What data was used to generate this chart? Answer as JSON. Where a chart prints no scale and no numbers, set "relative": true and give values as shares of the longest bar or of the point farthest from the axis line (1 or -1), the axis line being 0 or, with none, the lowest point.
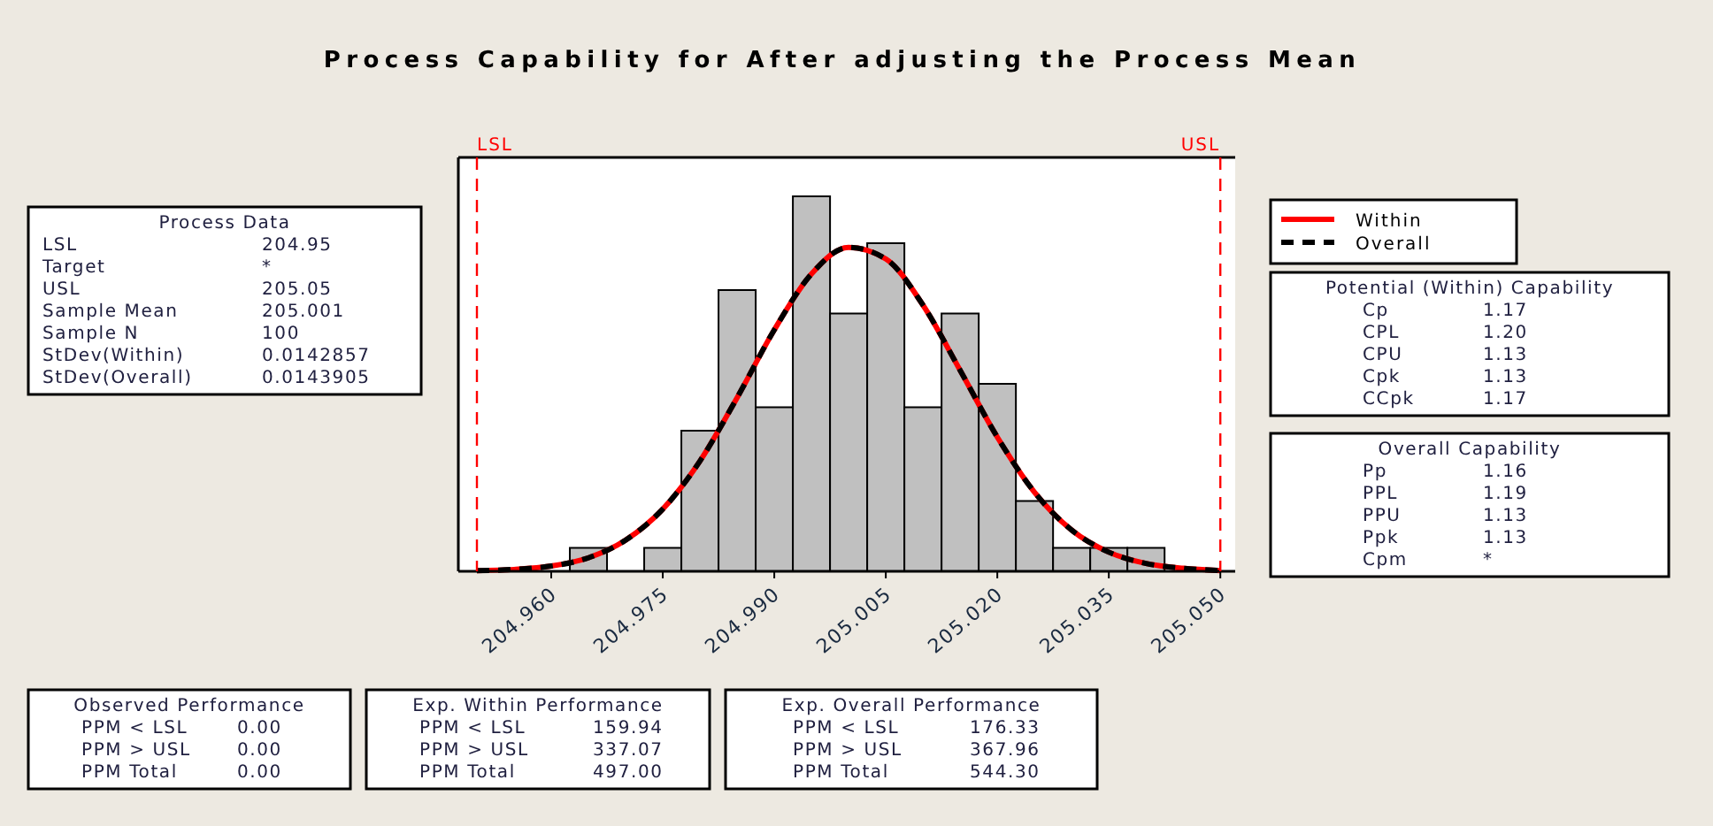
{
  "chart_data": {
    "type": "histogram",
    "title": "Process Capability for After adjusting the Process Mean",
    "relative": true,
    "color": "#c0c0c0",
    "bins": [
      204.9625,
      204.9675,
      204.9725,
      204.9775,
      204.9825,
      204.9875,
      204.9925,
      204.9975,
      205.0025,
      205.0075,
      205.0125,
      205.0175,
      205.0225,
      205.0275,
      205.0325,
      205.0375,
      205.0425
    ],
    "values": [
      0.0625,
      0,
      0.0625,
      0.375,
      0.75,
      0.4375,
      1,
      0.6875,
      0.875,
      0.4375,
      0.6875,
      0.5,
      0.1875,
      0.0625,
      0.0625,
      0.0625
    ],
    "xlim": [
      204.9475,
      205.052
    ],
    "xticks": [
      {
        "value": 204.96,
        "label": "204.960"
      },
      {
        "value": 204.975,
        "label": "204.975"
      },
      {
        "value": 204.99,
        "label": "204.990"
      },
      {
        "value": 205.005,
        "label": "205.005"
      },
      {
        "value": 205.02,
        "label": "205.020"
      },
      {
        "value": 205.035,
        "label": "205.035"
      },
      {
        "value": 205.05,
        "label": "205.050"
      }
    ],
    "series": [
      {
        "name": "Within",
        "type": "line",
        "color": "#ff0000",
        "line_style": "solid",
        "x": [
          204.95,
          204.955,
          204.96,
          204.965,
          204.97,
          204.975,
          204.98,
          204.985,
          204.99,
          204.995,
          205.0,
          205.005,
          205.01,
          205.015,
          205.02,
          205.025,
          205.03,
          205.035,
          205.04,
          205.045,
          205.05
        ],
        "values": [
          0.002,
          0.005,
          0.014,
          0.036,
          0.083,
          0.166,
          0.294,
          0.463,
          0.644,
          0.793,
          0.864,
          0.833,
          0.71,
          0.536,
          0.358,
          0.211,
          0.11,
          0.051,
          0.021,
          0.008,
          0.002
        ]
      },
      {
        "name": "Overall",
        "type": "line",
        "color": "#000000",
        "line_style": "dashed",
        "x": [
          204.95,
          204.955,
          204.96,
          204.965,
          204.97,
          204.975,
          204.98,
          204.985,
          204.99,
          204.995,
          205.0,
          205.005,
          205.01,
          205.015,
          205.02,
          205.025,
          205.03,
          205.035,
          205.04,
          205.045,
          205.05
        ],
        "values": [
          0.002,
          0.005,
          0.014,
          0.036,
          0.083,
          0.166,
          0.294,
          0.463,
          0.644,
          0.793,
          0.864,
          0.833,
          0.71,
          0.536,
          0.358,
          0.211,
          0.11,
          0.051,
          0.021,
          0.008,
          0.002
        ]
      }
    ],
    "ref_lines": [
      {
        "axis": "x",
        "value": 204.95,
        "label": "LSL",
        "color": "#ff0000",
        "line_style": "dashed"
      },
      {
        "axis": "x",
        "value": 205.05,
        "label": "USL",
        "color": "#ff0000",
        "line_style": "dashed"
      }
    ],
    "legend": "right",
    "annotations": [
      "Process Data\nLSL\t204.95\nTarget\t*\nUSL\t205.05\nSample Mean\t205.001\nSample N\t100\nStDev(Within)\t0.0142857\nStDev(Overall)\t0.0143905",
      "Potential (Within) Capability\nCp\t1.17\nCPL\t1.20\nCPU\t1.13\nCpk\t1.13\nCCpk\t1.17",
      "Overall Capability\nPp\t1.16\nPPL\t1.19\nPPU\t1.13\nPpk\t1.13\nCpm\t*",
      "Observed Performance\nPPM < LSL\t0.00\nPPM > USL\t0.00\nPPM Total\t0.00",
      "Exp. Within Performance\nPPM < LSL\t159.94\nPPM > USL\t337.07\nPPM Total\t497.00",
      "Exp. Overall Performance\nPPM < LSL\t176.33\nPPM > USL\t367.96\nPPM Total\t544.30"
    ]
  }
}
